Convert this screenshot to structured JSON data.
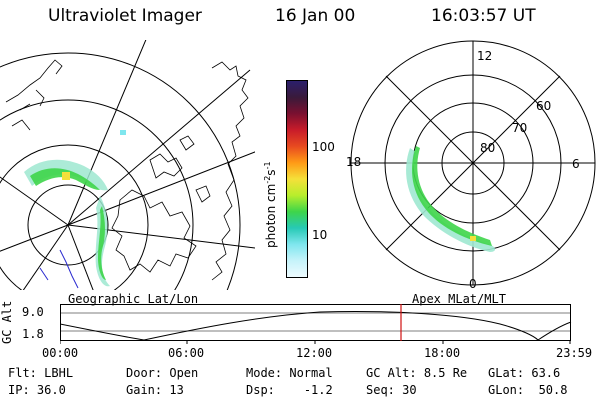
{
  "header": {
    "title": "Ultraviolet Imager",
    "date": "16 Jan 00",
    "time": "16:03:57 UT"
  },
  "colorbar": {
    "unit_label": "photon cm",
    "unit_sup1": "-2",
    "unit_mid": "s",
    "unit_sup2": "-1",
    "tick_high": "100",
    "tick_low": "10",
    "colors": [
      "#2b1f6b",
      "#3a1a3a",
      "#7a1030",
      "#c81c2a",
      "#e84a20",
      "#ff9a16",
      "#f5e03a",
      "#b8ee2c",
      "#3ed54a",
      "#27c9b5",
      "#7fe6ee",
      "#c6f3fa",
      "#eefbff"
    ]
  },
  "geo_map": {
    "label": "Geographic Lat/Lon"
  },
  "polar_plot": {
    "label": "Apex MLat/MLT",
    "ring_labels": [
      "60",
      "70",
      "80"
    ],
    "mlt_labels": {
      "top": "12",
      "bottom": "0",
      "left": "18",
      "right": "6"
    }
  },
  "altitude_strip": {
    "ylabel": "GC Alt",
    "ticks": [
      "9.0",
      "1.8"
    ],
    "time_ticks": [
      "00:00",
      "06:00",
      "12:00",
      "18:00",
      "23:59"
    ]
  },
  "info_panel": {
    "rows": [
      [
        {
          "label": "Flt:",
          "value": "LBHL"
        },
        {
          "label": "Door:",
          "value": "Open"
        },
        {
          "label": "Mode:",
          "value": "Normal"
        },
        {
          "label": "GC Alt:",
          "value": "8.5 Re"
        },
        {
          "label": "GLat:",
          "value": "63.6"
        }
      ],
      [
        {
          "label": "IP:",
          "value": "36.0"
        },
        {
          "label": "Gain:",
          "value": "13"
        },
        {
          "label": "Dsp:",
          "value": "-1.2"
        },
        {
          "label": "Seq:",
          "value": "30"
        },
        {
          "label": "GLon:",
          "value": "50.8"
        }
      ]
    ]
  }
}
